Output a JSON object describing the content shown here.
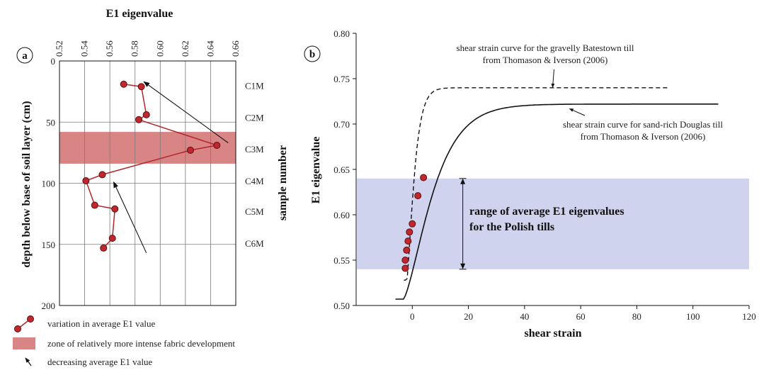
{
  "chart_data": [
    {
      "panel": "a",
      "type": "line",
      "title": "",
      "xlabel": "E1 eigenvalue",
      "ylabel": "depth below base of soil layer (cm)",
      "y2label": "sample number",
      "xlim": [
        0.52,
        0.66
      ],
      "ylim": [
        0,
        200
      ],
      "x_ticks": [
        "0.52",
        "0.54",
        "0.56",
        "0.58",
        "0.60",
        "0.62",
        "0.64",
        "0.66"
      ],
      "y_ticks": [
        "0",
        "50",
        "100",
        "150",
        "200"
      ],
      "sample_labels": [
        {
          "name": "C1M",
          "depth": 20
        },
        {
          "name": "C2M",
          "depth": 46
        },
        {
          "name": "C3M",
          "depth": 72
        },
        {
          "name": "C4M",
          "depth": 98
        },
        {
          "name": "C5M",
          "depth": 123
        },
        {
          "name": "C6M",
          "depth": 149
        }
      ],
      "series": [
        {
          "x": [
            0.571,
            0.585,
            0.589,
            0.583,
            0.645,
            0.624,
            0.554,
            0.541,
            0.548,
            0.564,
            0.562,
            0.555
          ],
          "y": [
            19,
            21,
            44,
            48,
            69,
            73,
            93,
            98,
            118,
            121,
            145,
            153
          ]
        }
      ],
      "bands": [
        {
          "depth_from": 58,
          "depth_to": 84
        }
      ],
      "arrows": [
        {
          "from": [
            0.654,
            67
          ],
          "to": [
            0.587,
            17
          ]
        },
        {
          "from": [
            0.589,
            157
          ],
          "to": [
            0.563,
            99
          ]
        }
      ],
      "grid": true,
      "legend": {
        "items": [
          {
            "kind": "line-marker",
            "label": "variation in average E1 value"
          },
          {
            "kind": "band",
            "label": "zone of relatively more intense fabric development"
          },
          {
            "kind": "arrow",
            "label": "decreasing average E1 value"
          }
        ],
        "placement": "bottom-left"
      }
    },
    {
      "panel": "b",
      "type": "line",
      "title": "",
      "xlabel": "shear strain",
      "ylabel": "E1 eigenvalue",
      "xlim": [
        -20,
        120
      ],
      "ylim": [
        0.5,
        0.8
      ],
      "x_ticks": [
        "0",
        "20",
        "40",
        "60",
        "80",
        "100",
        "120"
      ],
      "y_ticks": [
        "0.50",
        "0.55",
        "0.60",
        "0.65",
        "0.70",
        "0.75",
        "0.80"
      ],
      "points": {
        "x": [
          -2.5,
          -2.5,
          -2,
          -1.5,
          -1,
          0,
          2,
          4
        ],
        "y": [
          0.541,
          0.55,
          0.561,
          0.571,
          0.581,
          0.59,
          0.621,
          0.641
        ]
      },
      "curves": [
        {
          "style": "solid",
          "asymptote": 0.722,
          "x_start": -6,
          "x_end": 109
        },
        {
          "style": "dashed",
          "asymptote": 0.74,
          "x_start": -3,
          "x_end": 91
        }
      ],
      "range_band": {
        "y_from": 0.54,
        "y_to": 0.64,
        "label": [
          "range of average E1 eigenvalues",
          "for the Polish tills"
        ],
        "arrow_x": 18
      },
      "annotations": [
        {
          "text": [
            "shear strain curve for the gravelly Batestown till",
            "from Thomason & Iverson (2006)"
          ],
          "arrow_to": [
            50,
            0.738
          ]
        },
        {
          "text": [
            "shear strain curve for sand-rich Douglas till",
            "from Thomason & Iverson (2006)"
          ],
          "arrow_to": [
            55,
            0.72
          ]
        }
      ],
      "grid": false
    }
  ],
  "panel_labels": [
    "a",
    "b"
  ],
  "colors": {
    "series": "#b5262b",
    "marker_fill": "#c0282d",
    "marker_edge": "#5a0d10",
    "band_a": "#d98585",
    "band_b": "#cfd3ee",
    "grid": "#7a7a7a",
    "ink": "#111111"
  }
}
